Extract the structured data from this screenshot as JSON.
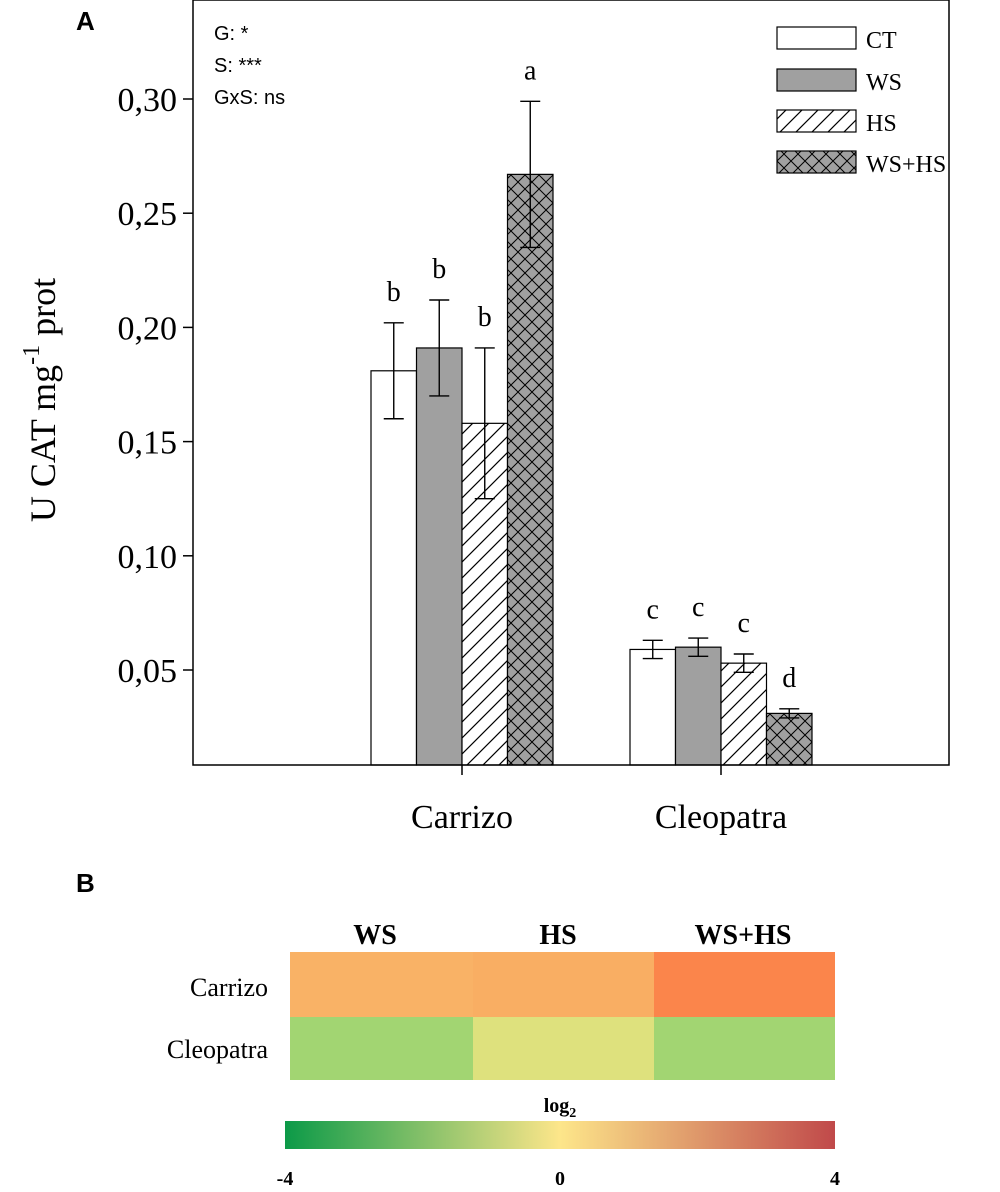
{
  "panel_a_label": "A",
  "panel_b_label": "B",
  "stats": [
    "G: *",
    "S: ***",
    "GxS: ns"
  ],
  "legend": [
    {
      "name": "CT",
      "pattern": "open"
    },
    {
      "name": "WS",
      "pattern": "gray"
    },
    {
      "name": "HS",
      "pattern": "hatch"
    },
    {
      "name": "WS+HS",
      "pattern": "crosshatch"
    }
  ],
  "chart_data": [
    {
      "type": "bar",
      "title": "",
      "xlabel": "",
      "ylabel_main": "U CAT mg",
      "ylabel_sup": "-1",
      "ylabel_tail": " prot",
      "categories": [
        "Carrizo",
        "Cleopatra"
      ],
      "ylim": [
        0,
        0.33
      ],
      "yticks": [
        0.05,
        0.1,
        0.15,
        0.2,
        0.25,
        0.3
      ],
      "ytick_labels": [
        "0,05",
        "0,10",
        "0,15",
        "0,20",
        "0,25",
        "0,30"
      ],
      "series": [
        {
          "name": "CT",
          "values": [
            0.181,
            0.059
          ],
          "errors": [
            0.021,
            0.004
          ],
          "letters": [
            "b",
            "c"
          ]
        },
        {
          "name": "WS",
          "values": [
            0.191,
            0.06
          ],
          "errors": [
            0.021,
            0.004
          ],
          "letters": [
            "b",
            "c"
          ]
        },
        {
          "name": "HS",
          "values": [
            0.158,
            0.053
          ],
          "errors": [
            0.033,
            0.004
          ],
          "letters": [
            "b",
            "c"
          ]
        },
        {
          "name": "WS+HS",
          "values": [
            0.267,
            0.031
          ],
          "errors": [
            0.032,
            0.002
          ],
          "letters": [
            "a",
            "d"
          ]
        }
      ]
    },
    {
      "type": "heatmap",
      "columns": [
        "WS",
        "HS",
        "WS+HS"
      ],
      "rows": [
        "Carrizo",
        "Cleopatra"
      ],
      "colors": [
        [
          "#F9B266",
          "#F9AE63",
          "#FB854B"
        ],
        [
          "#A2D572",
          "#DEE17D",
          "#A2D572"
        ]
      ],
      "colorbar": {
        "title": "log",
        "title_sub": "2",
        "min": -4,
        "max": 4,
        "tick_values": [
          -4,
          0,
          4
        ],
        "tick_labels": [
          "-4",
          "0",
          "4"
        ],
        "stops": [
          "#0C9A48",
          "#FDE68A",
          "#C0494A"
        ]
      }
    }
  ]
}
